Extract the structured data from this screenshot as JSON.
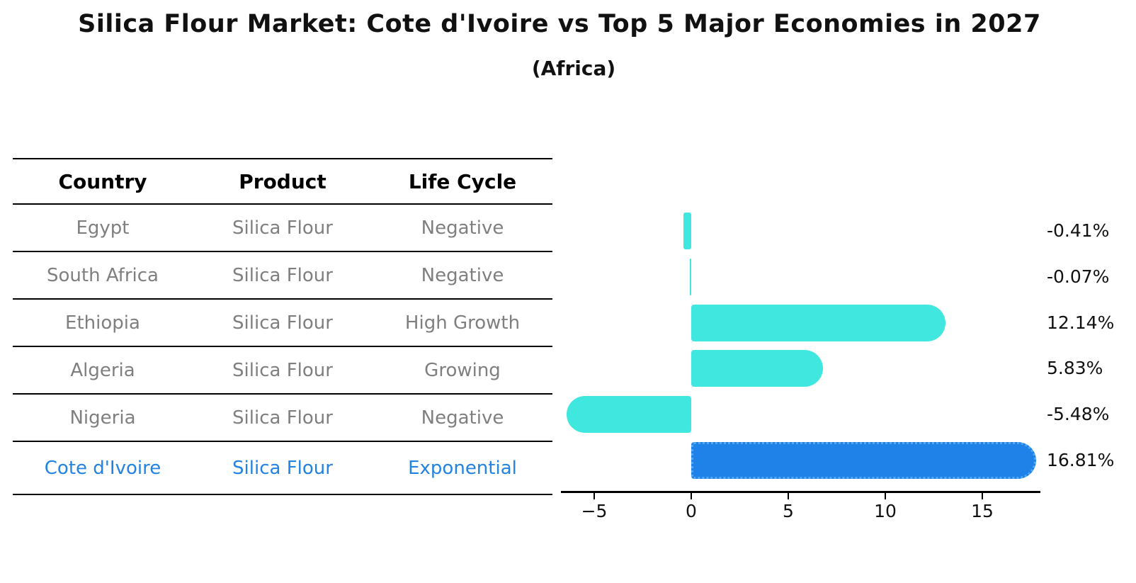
{
  "title": "Silica Flour Market: Cote d'Ivoire vs Top 5 Major Economies in 2027",
  "subtitle": "(Africa)",
  "table": {
    "headers": [
      "Country",
      "Product",
      "Life Cycle"
    ],
    "rows": [
      {
        "country": "Egypt",
        "product": "Silica Flour",
        "life_cycle": "Negative",
        "highlight": false
      },
      {
        "country": "South Africa",
        "product": "Silica Flour",
        "life_cycle": "Negative",
        "highlight": false
      },
      {
        "country": "Ethiopia",
        "product": "Silica Flour",
        "life_cycle": "High Growth",
        "highlight": false
      },
      {
        "country": "Algeria",
        "product": "Silica Flour",
        "life_cycle": "Growing",
        "highlight": false
      },
      {
        "country": "Nigeria",
        "product": "Silica Flour",
        "life_cycle": "Negative",
        "highlight": false
      },
      {
        "country": "Cote d'Ivoire",
        "product": "Silica Flour",
        "life_cycle": "Exponential",
        "highlight": true
      }
    ]
  },
  "chart_data": {
    "type": "bar",
    "orientation": "horizontal",
    "title": "Silica Flour Market: Cote d'Ivoire vs Top 5 Major Economies in 2027 (Africa)",
    "categories": [
      "Egypt",
      "South Africa",
      "Ethiopia",
      "Algeria",
      "Nigeria",
      "Cote d'Ivoire"
    ],
    "values": [
      -0.41,
      -0.07,
      12.14,
      5.83,
      -5.48,
      16.81
    ],
    "value_labels": [
      "-0.41%",
      "-0.07%",
      "12.14%",
      "5.83%",
      "-5.48%",
      "16.81%"
    ],
    "highlight_index": 5,
    "x_ticks": [
      -5,
      0,
      5,
      10,
      15
    ],
    "x_tick_labels": [
      "−5",
      "0",
      "5",
      "10",
      "15"
    ],
    "xlim": [
      -6.7,
      18.0
    ],
    "grid": false,
    "legend": false,
    "bar_color": "#40E7DF",
    "highlight_color": "#1E82E8",
    "label_color": "#111111",
    "muted_text_color": "#7f7f7f",
    "highlight_text_color": "#2383E2"
  }
}
